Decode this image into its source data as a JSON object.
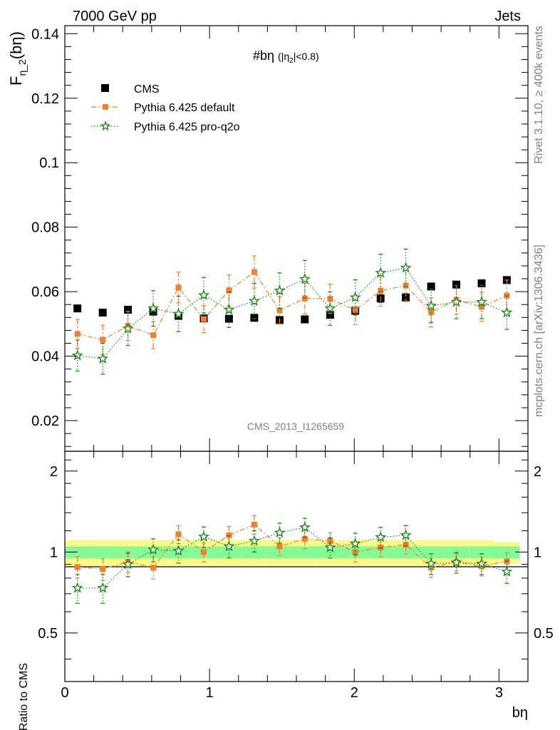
{
  "header": {
    "left": "7000 GeV pp",
    "right": "Jets"
  },
  "side_labels": {
    "rivet": "Rivet 3.1.10, ≥ 400k events",
    "mcplots": "mcplots.cern.ch [arXiv:1306.3436]"
  },
  "analysis_id": "CMS_2013_I1265659",
  "plot_title": {
    "main": "#bη",
    "cut": "(|η",
    "cut_sub": "2",
    "cut_end": "|<0.8)"
  },
  "ylabel_main": {
    "base": "F",
    "sub": "η_2",
    "arg": "(bη)"
  },
  "ylabel_ratio": "Ratio to CMS",
  "xlabel": "bη",
  "legend": [
    {
      "name": "CMS",
      "marker": "square",
      "color": "#000000"
    },
    {
      "name": "Pythia 6.425 default",
      "marker": "square",
      "color": "#f07f2f"
    },
    {
      "name": "Pythia 6.425 pro-q2o",
      "marker": "star",
      "color": "#158015"
    }
  ],
  "colors": {
    "cms": "#000000",
    "default": "#f07f2f",
    "proq2o": "#158015",
    "band_inner": "#84f995",
    "band_outer": "#fafa88"
  },
  "chart_data": [
    {
      "type": "scatter",
      "panel": "main",
      "x": [
        0.087,
        0.262,
        0.436,
        0.611,
        0.785,
        0.96,
        1.134,
        1.309,
        1.484,
        1.658,
        1.833,
        2.007,
        2.182,
        2.356,
        2.531,
        2.705,
        2.88,
        3.054
      ],
      "xlim": [
        0,
        3.2
      ],
      "ylim": [
        0.0105,
        0.1425
      ],
      "yticks": [
        0.02,
        0.04,
        0.06,
        0.08,
        0.1,
        0.12,
        0.14
      ],
      "ytick_labels": [
        "0.02",
        "0.04",
        "0.06",
        "0.08",
        "0.1",
        "0.12",
        "0.14"
      ],
      "xticks": [
        0,
        1,
        2,
        3
      ],
      "xtick_labels": [
        "0",
        "1",
        "2",
        "3"
      ],
      "series": [
        {
          "name": "CMS",
          "values": [
            0.0548,
            0.0535,
            0.0544,
            0.0538,
            0.0525,
            0.0517,
            0.0516,
            0.0519,
            0.0512,
            0.0514,
            0.0528,
            0.0541,
            0.0579,
            0.0582,
            0.0616,
            0.0622,
            0.0626,
            0.0636
          ],
          "errors": [
            0.0008,
            0.0008,
            0.0008,
            0.0008,
            0.0008,
            0.0008,
            0.0008,
            0.0008,
            0.0008,
            0.0008,
            0.0008,
            0.0008,
            0.0012,
            0.0012,
            0.0008,
            0.0008,
            0.0008,
            0.0008
          ]
        },
        {
          "name": "Pythia 6.425 default",
          "values": [
            0.0469,
            0.0451,
            0.0494,
            0.0465,
            0.0613,
            0.0515,
            0.0604,
            0.0661,
            0.0542,
            0.0579,
            0.0578,
            0.0543,
            0.0603,
            0.0619,
            0.0536,
            0.0575,
            0.0553,
            0.0588
          ],
          "errors": [
            0.0045,
            0.0045,
            0.0045,
            0.0042,
            0.0048,
            0.0042,
            0.0048,
            0.005,
            0.0042,
            0.0048,
            0.0045,
            0.0045,
            0.0048,
            0.0048,
            0.0045,
            0.0045,
            0.0045,
            0.0048
          ]
        },
        {
          "name": "Pythia 6.425 pro-q2o",
          "values": [
            0.0402,
            0.0392,
            0.0485,
            0.0548,
            0.0531,
            0.0589,
            0.0544,
            0.0571,
            0.0603,
            0.0639,
            0.0548,
            0.0582,
            0.0658,
            0.0674,
            0.0556,
            0.0568,
            0.0568,
            0.0535
          ],
          "errors": [
            0.0048,
            0.0048,
            0.0052,
            0.0055,
            0.0055,
            0.0055,
            0.0055,
            0.0055,
            0.0055,
            0.0058,
            0.0052,
            0.0055,
            0.0058,
            0.0058,
            0.0052,
            0.0052,
            0.0052,
            0.0052
          ]
        }
      ]
    },
    {
      "type": "scatter",
      "panel": "ratio",
      "x": [
        0.087,
        0.262,
        0.436,
        0.611,
        0.785,
        0.96,
        1.134,
        1.309,
        1.484,
        1.658,
        1.833,
        2.007,
        2.182,
        2.356,
        2.531,
        2.705,
        2.88,
        3.054
      ],
      "xlim": [
        0,
        3.2
      ],
      "ylim": [
        0.33,
        2.37
      ],
      "yticks": [
        0.5,
        1,
        2
      ],
      "ytick_labels": [
        "0.5",
        "1",
        "2"
      ],
      "band_inner": [
        0.05,
        0.05,
        0.05,
        0.05,
        0.05,
        0.05,
        0.05,
        0.05,
        0.05,
        0.05,
        0.05,
        0.05,
        0.05,
        0.05,
        0.05,
        0.05,
        0.05,
        0.05
      ],
      "band_outer": [
        0.11,
        0.11,
        0.11,
        0.11,
        0.11,
        0.11,
        0.11,
        0.11,
        0.11,
        0.11,
        0.11,
        0.11,
        0.11,
        0.11,
        0.11,
        0.11,
        0.11,
        0.09
      ],
      "series": [
        {
          "name": "Pythia 6.425 default",
          "values": [
            0.88,
            0.865,
            0.92,
            0.875,
            1.165,
            1.0,
            1.155,
            1.265,
            1.05,
            1.12,
            1.1,
            1.0,
            1.04,
            1.065,
            0.875,
            0.92,
            0.885,
            0.925
          ],
          "errors": [
            0.08,
            0.08,
            0.08,
            0.08,
            0.09,
            0.08,
            0.09,
            0.1,
            0.08,
            0.09,
            0.08,
            0.08,
            0.08,
            0.08,
            0.07,
            0.07,
            0.07,
            0.07
          ]
        },
        {
          "name": "Pythia 6.425 pro-q2o",
          "values": [
            0.735,
            0.735,
            0.9,
            1.02,
            1.01,
            1.14,
            1.05,
            1.1,
            1.18,
            1.235,
            1.04,
            1.075,
            1.135,
            1.155,
            0.905,
            0.915,
            0.905,
            0.845
          ],
          "errors": [
            0.09,
            0.09,
            0.09,
            0.1,
            0.1,
            0.1,
            0.1,
            0.1,
            0.1,
            0.1,
            0.09,
            0.1,
            0.1,
            0.1,
            0.08,
            0.08,
            0.08,
            0.08
          ]
        }
      ]
    }
  ]
}
